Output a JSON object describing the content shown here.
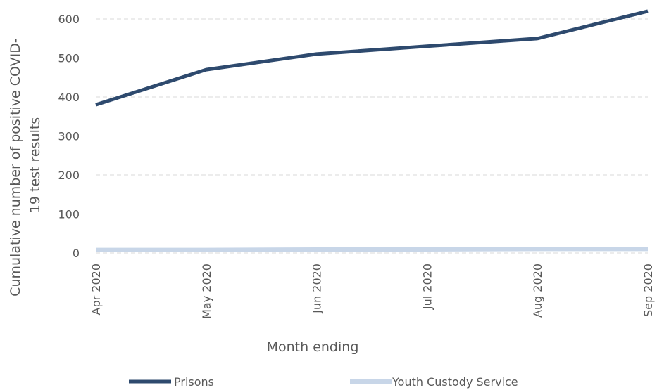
{
  "chart_data": {
    "type": "line",
    "title": "",
    "xlabel": "Month ending",
    "ylabel_lines": [
      "Cumulative number of positive COVID-",
      "19 test results"
    ],
    "categories": [
      "Apr 2020",
      "May 2020",
      "Jun 2020",
      "Jul 2020",
      "Aug 2020",
      "Sep 2020"
    ],
    "ylim": [
      0,
      600
    ],
    "yticks": [
      0,
      100,
      200,
      300,
      400,
      500,
      600
    ],
    "grid": true,
    "legend_position": "bottom",
    "series": [
      {
        "name": "Prisons",
        "color": "#2e4a6e",
        "values": [
          380,
          470,
          510,
          530,
          550,
          620
        ]
      },
      {
        "name": "Youth Custody Service",
        "color": "#c8d6e8",
        "values": [
          8,
          8,
          9,
          9,
          10,
          10
        ]
      }
    ]
  }
}
